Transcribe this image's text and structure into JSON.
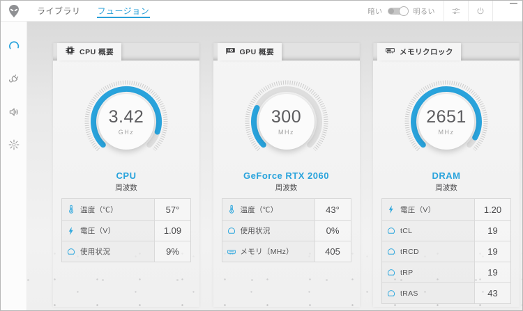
{
  "colors": {
    "accent": "#29a3dc",
    "gauge_track": "#dedede",
    "gauge_ticks": "#c9c9c9"
  },
  "topbar": {
    "nav": [
      {
        "label": "ライブラリ",
        "active": false
      },
      {
        "label": "フュージョン",
        "active": true
      }
    ],
    "theme_toggle": {
      "dark_label": "暗い",
      "light_label": "明るい",
      "state": "light"
    },
    "actions": [
      {
        "icon": "settings-icon"
      },
      {
        "icon": "power-icon"
      }
    ]
  },
  "sidebar": {
    "items": [
      {
        "icon": "gauge-icon",
        "active": true
      },
      {
        "icon": "power-plug-icon",
        "active": false
      },
      {
        "icon": "speaker-icon",
        "active": false
      },
      {
        "icon": "lighting-icon",
        "active": false
      }
    ]
  },
  "cards": [
    {
      "tab": {
        "icon": "cpu-icon",
        "label": "CPU 概要"
      },
      "gauge": {
        "value": "3.42",
        "unit": "GHz",
        "fill": 0.9
      },
      "device": "CPU",
      "metric_label": "周波数",
      "rows": [
        {
          "icon": "thermometer-icon",
          "label": "温度（℃）",
          "value": "57°"
        },
        {
          "icon": "bolt-icon",
          "label": "電圧（V）",
          "value": "1.09"
        },
        {
          "icon": "usage-gauge-icon",
          "label": "使用状況",
          "value": "9%"
        }
      ]
    },
    {
      "tab": {
        "icon": "gpu-icon",
        "label": "GPU 概要"
      },
      "gauge": {
        "value": "300",
        "unit": "MHz",
        "fill": 0.26
      },
      "device": "GeForce RTX 2060",
      "metric_label": "周波数",
      "rows": [
        {
          "icon": "thermometer-icon",
          "label": "温度（℃）",
          "value": "43°"
        },
        {
          "icon": "usage-gauge-icon",
          "label": "使用状況",
          "value": "0%"
        },
        {
          "icon": "memory-icon",
          "label": "メモリ（MHz）",
          "value": "405"
        }
      ]
    },
    {
      "tab": {
        "icon": "ram-icon",
        "label": "メモリクロック"
      },
      "gauge": {
        "value": "2651",
        "unit": "MHz",
        "fill": 0.94
      },
      "device": "DRAM",
      "metric_label": "周波数",
      "rows": [
        {
          "icon": "bolt-icon",
          "label": "電圧（V）",
          "value": "1.20"
        },
        {
          "icon": "usage-gauge-icon",
          "label": "tCL",
          "value": "19"
        },
        {
          "icon": "usage-gauge-icon",
          "label": "tRCD",
          "value": "19"
        },
        {
          "icon": "usage-gauge-icon",
          "label": "tRP",
          "value": "19"
        },
        {
          "icon": "usage-gauge-icon",
          "label": "tRAS",
          "value": "43"
        }
      ]
    }
  ]
}
